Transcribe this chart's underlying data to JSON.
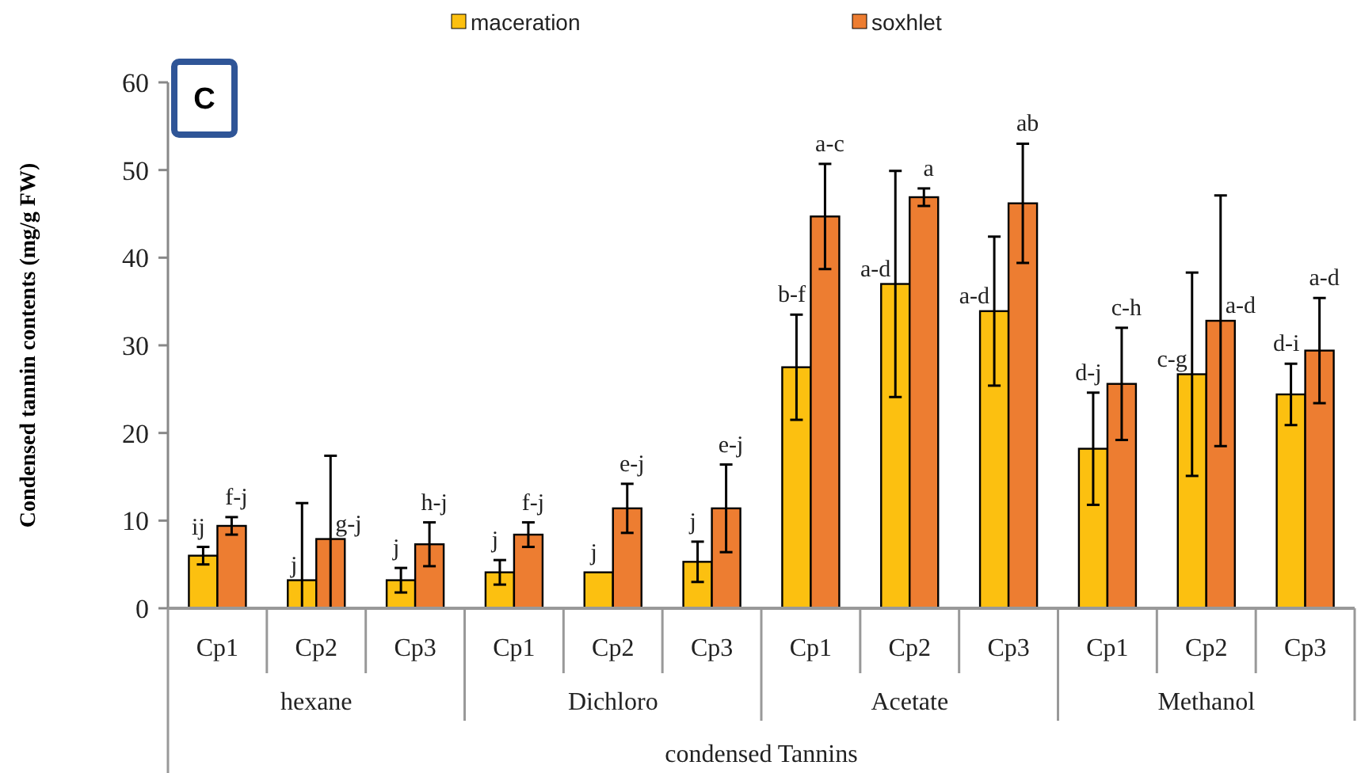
{
  "chart_data": {
    "type": "bar",
    "ylabel": "Condensed tannin contents (mg/g  FW)",
    "xlabel": "condensed Tannins",
    "annotations": [
      "C",
      "hexane",
      "Dichloro",
      "Acetate",
      "Methanol"
    ],
    "categories": [
      "Cp1",
      "Cp2",
      "Cp3",
      "Cp1",
      "Cp2",
      "Cp3",
      "Cp1",
      "Cp2",
      "Cp3",
      "Cp1",
      "Cp2",
      "Cp3"
    ],
    "ylim": [
      0,
      60
    ],
    "yticks": [
      0,
      10,
      20,
      30,
      40,
      50,
      60
    ],
    "legend": "top",
    "series": [
      {
        "name": "maceration",
        "color": "#fcc010",
        "values": [
          6.0,
          3.2,
          3.2,
          4.1,
          4.1,
          5.3,
          27.5,
          37.0,
          33.9,
          18.2,
          26.7,
          24.4
        ],
        "errors": [
          1.0,
          [
            0,
            12.0
          ],
          1.4,
          1.4,
          null,
          2.3,
          6.0,
          12.9,
          8.5,
          6.4,
          11.6,
          3.5
        ],
        "value_labels": [
          "ij",
          "j",
          "j",
          "j",
          "j",
          "j",
          "b-f",
          "a-d",
          "a-d",
          "d-j",
          "c-g",
          "d-i"
        ]
      },
      {
        "name": "soxhlet",
        "color": "#ed7d31",
        "values": [
          9.4,
          7.9,
          7.3,
          8.4,
          11.4,
          11.4,
          44.7,
          46.9,
          46.2,
          25.6,
          32.8,
          29.4
        ],
        "errors": [
          1.0,
          [
            0,
            17.4
          ],
          2.5,
          1.4,
          2.8,
          5.0,
          6.0,
          1.0,
          6.8,
          6.4,
          14.3,
          6.0
        ],
        "value_labels": [
          "f-j",
          "g-j",
          "h-j",
          "f-j",
          "e-j",
          "e-j",
          "a-c",
          "a",
          "ab",
          "c-h",
          "a-d",
          "a-d"
        ]
      }
    ]
  }
}
